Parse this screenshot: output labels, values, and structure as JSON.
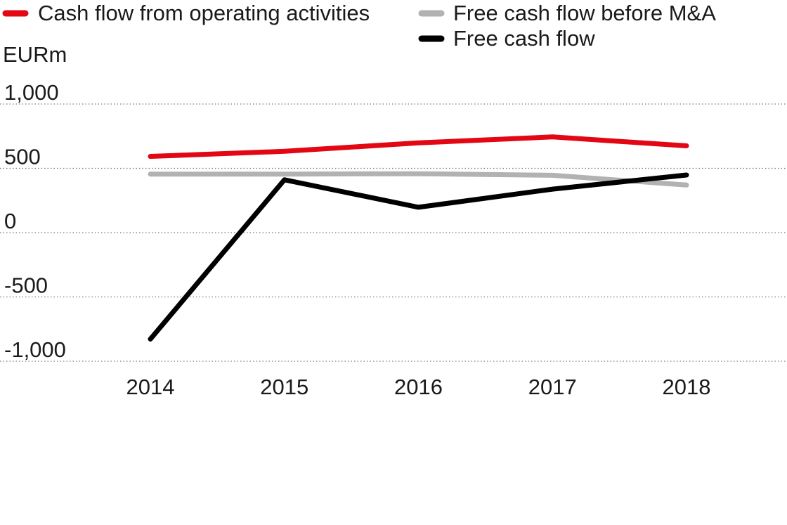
{
  "chart_data": {
    "type": "line",
    "ylabel": "EURm",
    "categories": [
      "2014",
      "2015",
      "2016",
      "2017",
      "2018"
    ],
    "ylim": [
      -1000,
      1000
    ],
    "yticks": [
      1000,
      500,
      0,
      -500,
      -1000
    ],
    "ytick_labels": [
      "1,000",
      "500",
      "0",
      "-500",
      "-1,000"
    ],
    "grid": "horizontal dotted",
    "legend_position": "top",
    "series": [
      {
        "name": "Cash flow from operating activities",
        "color": "#e30613",
        "values": [
          593,
          632,
          698,
          744,
          675
        ]
      },
      {
        "name": "Free cash flow before M&A",
        "color": "#b2b2b2",
        "values": [
          455,
          455,
          458,
          446,
          370
        ]
      },
      {
        "name": "Free cash flow",
        "color": "#000000",
        "values": [
          -828,
          411,
          197,
          338,
          448
        ]
      }
    ]
  }
}
